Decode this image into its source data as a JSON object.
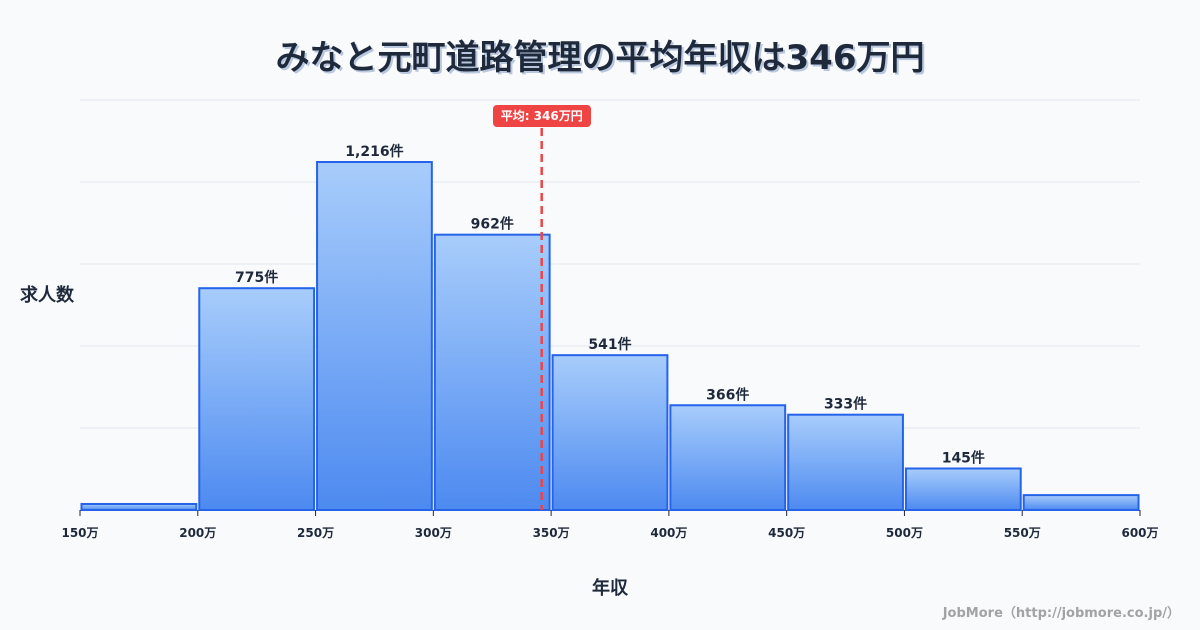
{
  "title": "みなと元町道路管理の平均年収は346万円",
  "credit": "JobMore（http://jobmore.co.jp/）",
  "mean_label": "平均: 346万円",
  "colors": {
    "bar_top": "#a8cdfb",
    "bar_bottom": "#4d8af0",
    "bar_stroke": "#2563eb",
    "mean_line": "#ef4444",
    "grid": "#e2e8f0",
    "text": "#1e293b"
  },
  "chart_data": {
    "type": "bar",
    "title": "みなと元町道路管理の平均年収は346万円",
    "xlabel": "年収",
    "ylabel": "求人数",
    "x_ticks": [
      "150万",
      "200万",
      "250万",
      "300万",
      "350万",
      "400万",
      "450万",
      "500万",
      "550万",
      "600万"
    ],
    "categories": [
      "150-200万",
      "200-250万",
      "250-300万",
      "300-350万",
      "350-400万",
      "400-450万",
      "450-500万",
      "500-550万",
      "550-600万"
    ],
    "values": [
      21,
      775,
      1216,
      962,
      541,
      366,
      333,
      145,
      52
    ],
    "value_labels": [
      "",
      "775件",
      "1,216件",
      "962件",
      "541件",
      "366件",
      "333件",
      "145件",
      ""
    ],
    "mean": 346,
    "mean_label": "平均: 346万円",
    "grid": true,
    "legend": null
  }
}
